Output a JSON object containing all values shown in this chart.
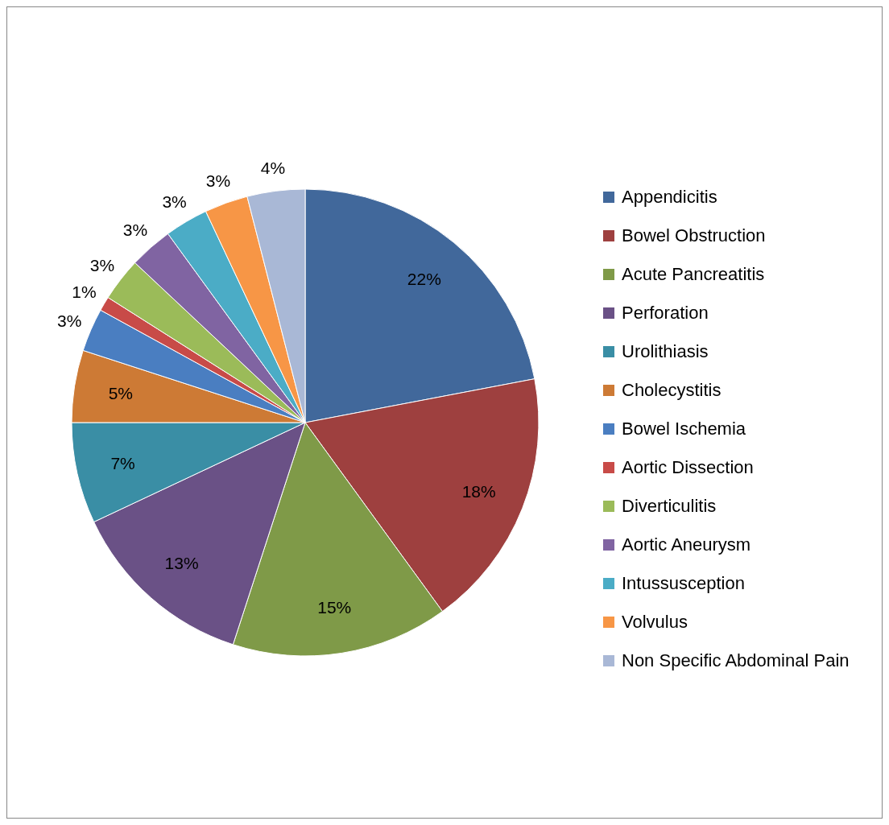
{
  "chart_data": {
    "type": "pie",
    "categories": [
      "Appendicitis",
      "Bowel Obstruction",
      "Acute Pancreatitis",
      "Perforation",
      "Urolithiasis",
      "Cholecystitis",
      "Bowel Ischemia",
      "Aortic Dissection",
      "Diverticulitis",
      "Aortic Aneurysm",
      "Intussusception",
      "Volvulus",
      "Non Specific Abdominal Pain"
    ],
    "values": [
      22,
      18,
      15,
      13,
      7,
      5,
      3,
      1,
      3,
      3,
      3,
      3,
      4
    ],
    "value_labels": [
      "22%",
      "18%",
      "15%",
      "13%",
      "7%",
      "5%",
      "3%",
      "1%",
      "3%",
      "3%",
      "3%",
      "3%",
      "4%"
    ],
    "colors": [
      "#41689b",
      "#9e403f",
      "#7f9a48",
      "#6a5186",
      "#3a8ea5",
      "#cd7a35",
      "#4a7ec1",
      "#c84b48",
      "#9bbb59",
      "#8064a2",
      "#4bacc6",
      "#f79646",
      "#a9b8d6"
    ],
    "legend": "right"
  }
}
